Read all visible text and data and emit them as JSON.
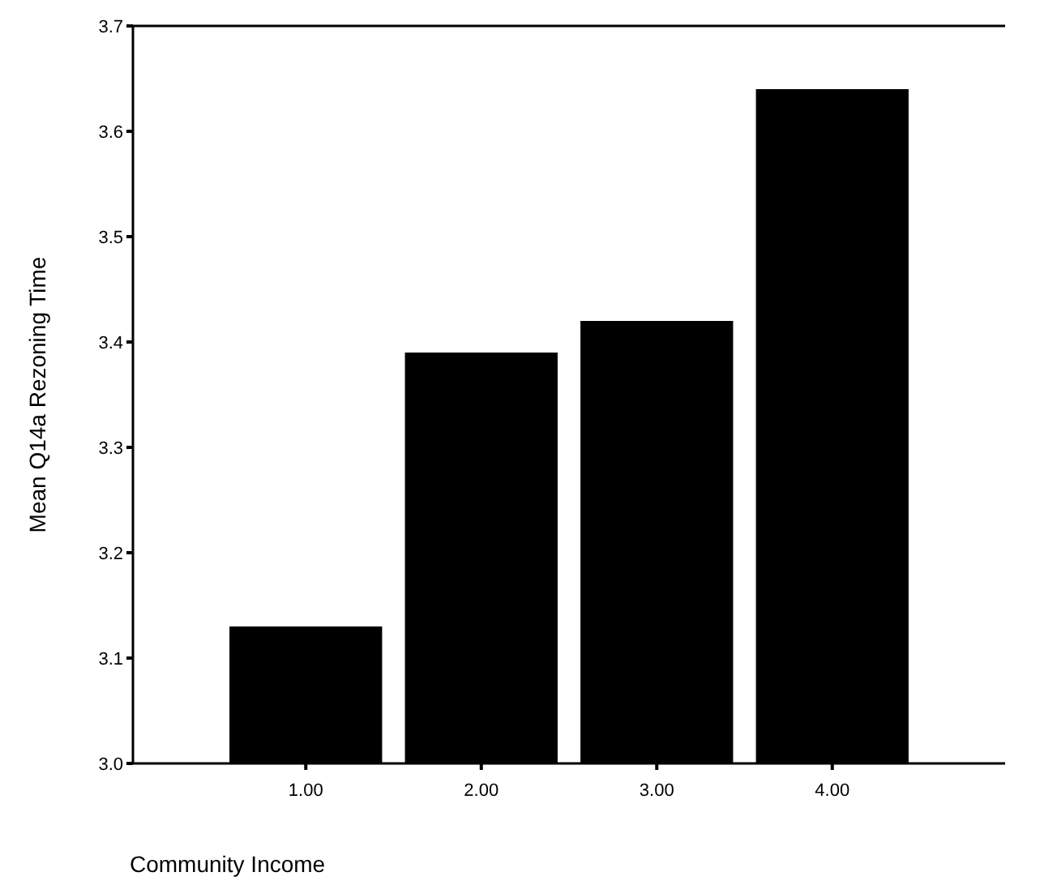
{
  "chart_data": {
    "type": "bar",
    "xlabel": "Community Income",
    "ylabel": "Mean Q14a Rezoning Time",
    "categories": [
      "1.00",
      "2.00",
      "3.00",
      "4.00"
    ],
    "values": [
      3.13,
      3.39,
      3.42,
      3.64
    ],
    "color": "#000000",
    "ylim": [
      3.0,
      3.7
    ],
    "yticks": [
      {
        "value": 3.0,
        "label": "3.0"
      },
      {
        "value": 3.1,
        "label": "3.1"
      },
      {
        "value": 3.2,
        "label": "3.2"
      },
      {
        "value": 3.3,
        "label": "3.3"
      },
      {
        "value": 3.4,
        "label": "3.4"
      },
      {
        "value": 3.5,
        "label": "3.5"
      },
      {
        "value": 3.6,
        "label": "3.6"
      },
      {
        "value": 3.7,
        "label": "3.7"
      }
    ],
    "grid": false
  }
}
